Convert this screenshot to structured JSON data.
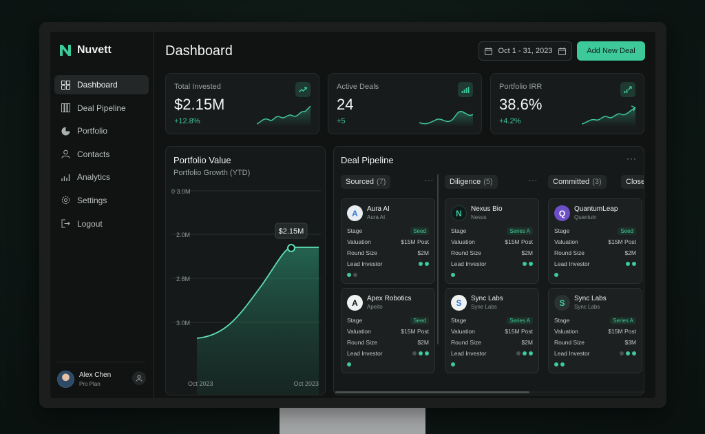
{
  "app": {
    "name": "Nuvett"
  },
  "colors": {
    "accent": "#3ec99b",
    "background": "#111313",
    "card": "#181b1b"
  },
  "sidebar": {
    "items": [
      {
        "label": "Dashboard",
        "icon": "dashboard-icon",
        "active": true
      },
      {
        "label": "Deal Pipeline",
        "icon": "pipeline-icon"
      },
      {
        "label": "Portfolio",
        "icon": "pie-chart-icon"
      },
      {
        "label": "Contacts",
        "icon": "contacts-icon"
      },
      {
        "label": "Analytics",
        "icon": "analytics-icon"
      },
      {
        "label": "Settings",
        "icon": "gear-icon"
      },
      {
        "label": "Logout",
        "icon": "logout-icon"
      }
    ],
    "user": {
      "name": "Alex Chen",
      "plan": "Pro Plan"
    }
  },
  "header": {
    "title": "Dashboard",
    "date_range": "Oct 1 - 31, 2023",
    "add_button": "Add New Deal"
  },
  "stats": [
    {
      "label": "Total Invested",
      "value": "$2.15M",
      "delta": "+12.8%",
      "icon": "trend-up-icon"
    },
    {
      "label": "Active Deals",
      "value": "24",
      "delta": "+5",
      "icon": "bar-chart-icon"
    },
    {
      "label": "Portfolio IRR",
      "value": "38.6%",
      "delta": "+4.2%",
      "icon": "growth-chart-icon"
    }
  ],
  "portfolio": {
    "title": "Portfolio Value",
    "subtitle": "Portfolio Growth (YTD)",
    "tooltip": "$2.15M",
    "x_start": "Oct 2023",
    "x_end": "Oct 2023",
    "y_ticks": [
      "0 3.0M",
      "2.0M",
      "2.8M",
      "3.0M"
    ]
  },
  "pipeline": {
    "title": "Deal Pipeline",
    "columns": [
      {
        "name": "Sourced",
        "count": "(7)",
        "deals": [
          {
            "name": "Aura AI",
            "sub": "Aura AI",
            "stage": "Seed",
            "valuation": "$15M Post",
            "round": "$2M"
          },
          {
            "name": "Apex Robotics",
            "sub": "Apeito",
            "stage": "Seed",
            "valuation": "$15M Post",
            "round": "$2M"
          }
        ]
      },
      {
        "name": "Diligence",
        "count": "(5)",
        "deals": [
          {
            "name": "Nexus Bio",
            "sub": "Nesus",
            "stage": "Series A",
            "valuation": "$15M Post",
            "round": "$2M"
          },
          {
            "name": "Sync Labs",
            "sub": "Syne Labs",
            "stage": "Series A",
            "valuation": "$15M Post",
            "round": "$2M"
          }
        ]
      },
      {
        "name": "Committed",
        "count": "(3)",
        "deals": [
          {
            "name": "QuantumLeap",
            "sub": "Quantuin",
            "stage": "Seed",
            "valuation": "$15M Post",
            "round": "$2M"
          },
          {
            "name": "Sync Labs",
            "sub": "Sync Labs",
            "stage": "Series A",
            "valuation": "$15M Post",
            "round": "$3M"
          }
        ]
      },
      {
        "name": "Close",
        "count": ""
      }
    ],
    "row_labels": {
      "stage": "Stage",
      "valuation": "Valuation",
      "round": "Round Size",
      "lead": "Lead Investor"
    }
  }
}
